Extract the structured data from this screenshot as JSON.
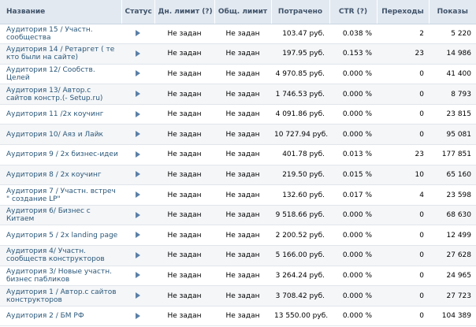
{
  "headers": {
    "name": "Название",
    "status": "Статус",
    "day_limit": "Дн. лимит (?)",
    "total_limit": "Общ. лимит",
    "spent": "Потрачено",
    "ctr": "CTR (?)",
    "clicks": "Переходы",
    "shows": "Показы"
  },
  "rows": [
    {
      "name": "Аудитория 15 / Участн. сообщества",
      "day_limit": "Не задан",
      "total_limit": "Не задан",
      "spent": "103.47 руб.",
      "ctr": "0.038 %",
      "clicks": "2",
      "shows": "5 220"
    },
    {
      "name": "Аудитория 14 / Ретаргет ( те кто были на сайте)",
      "day_limit": "Не задан",
      "total_limit": "Не задан",
      "spent": "197.95 руб.",
      "ctr": "0.153 %",
      "clicks": "23",
      "shows": "14 986"
    },
    {
      "name": "Аудитория 12/ Сообств. Целей",
      "day_limit": "Не задан",
      "total_limit": "Не задан",
      "spent": "4 970.85 руб.",
      "ctr": "0.000 %",
      "clicks": "0",
      "shows": "41 400"
    },
    {
      "name": "Аудитория 13/ Автор.с сайтов констр.(- Setup.ru)",
      "day_limit": "Не задан",
      "total_limit": "Не задан",
      "spent": "1 746.53 руб.",
      "ctr": "0.000 %",
      "clicks": "0",
      "shows": "8 793"
    },
    {
      "name": "Аудитория 11 /2х коучинг",
      "day_limit": "Не задан",
      "total_limit": "Не задан",
      "spent": "4 091.86 руб.",
      "ctr": "0.000 %",
      "clicks": "0",
      "shows": "23 815"
    },
    {
      "name": "Аудитория 10/ Аяз и Лайк",
      "day_limit": "Не задан",
      "total_limit": "Не задан",
      "spent": "10 727.94 руб.",
      "ctr": "0.000 %",
      "clicks": "0",
      "shows": "95 081"
    },
    {
      "name": "Аудитория 9 / 2х бизнес-идеи",
      "day_limit": "Не задан",
      "total_limit": "Не задан",
      "spent": "401.78 руб.",
      "ctr": "0.013 %",
      "clicks": "23",
      "shows": "177 851"
    },
    {
      "name": "Аудитория 8 / 2х коучинг",
      "day_limit": "Не задан",
      "total_limit": "Не задан",
      "spent": "219.50 руб.",
      "ctr": "0.015 %",
      "clicks": "10",
      "shows": "65 160"
    },
    {
      "name": "Аудитория 7 / Участн. встреч \" создание LP\"",
      "day_limit": "Не задан",
      "total_limit": "Не задан",
      "spent": "132.60 руб.",
      "ctr": "0.017 %",
      "clicks": "4",
      "shows": "23 598"
    },
    {
      "name": "Аудитория 6/ Бизнес с Китаем",
      "day_limit": "Не задан",
      "total_limit": "Не задан",
      "spent": "9 518.66 руб.",
      "ctr": "0.000 %",
      "clicks": "0",
      "shows": "68 630"
    },
    {
      "name": "Аудитория 5 / 2х landing page",
      "day_limit": "Не задан",
      "total_limit": "Не задан",
      "spent": "2 200.52 руб.",
      "ctr": "0.000 %",
      "clicks": "0",
      "shows": "12 499"
    },
    {
      "name": "Аудитория 4/ Участн. сообществ конструкторов",
      "day_limit": "Не задан",
      "total_limit": "Не задан",
      "spent": "5 166.00 руб.",
      "ctr": "0.000 %",
      "clicks": "0",
      "shows": "27 628"
    },
    {
      "name": "Аудитория 3/ Новые участн. бизнес пабликов",
      "day_limit": "Не задан",
      "total_limit": "Не задан",
      "spent": "3 264.24 руб.",
      "ctr": "0.000 %",
      "clicks": "0",
      "shows": "24 965"
    },
    {
      "name": "Аудитория 1 / Автор.с сайтов конструкторов",
      "day_limit": "Не задан",
      "total_limit": "Не задан",
      "spent": "3 708.42 руб.",
      "ctr": "0.000 %",
      "clicks": "0",
      "shows": "27 723"
    },
    {
      "name": "Аудитория 2 / БМ РФ",
      "day_limit": "Не задан",
      "total_limit": "Не задан",
      "spent": "13 550.00 руб.",
      "ctr": "0.000 %",
      "clicks": "0",
      "shows": "104 389"
    }
  ],
  "icons": {
    "status": "play-icon"
  },
  "colors": {
    "header_bg": "#e2e9f1",
    "header_text": "#40536a",
    "link": "#2b587a",
    "status_icon": "#5a7fa6"
  }
}
